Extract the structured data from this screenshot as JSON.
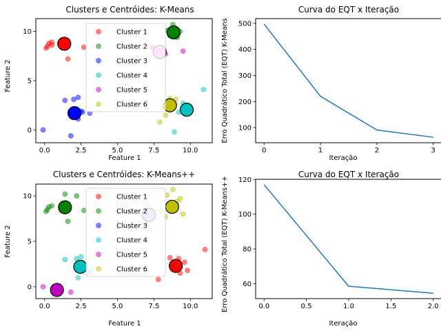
{
  "colors": {
    "red": "#ff0000",
    "green": "#008000",
    "blue": "#0000ff",
    "cyan": "#00bfbf",
    "magenta": "#bf00bf",
    "olive": "#bfbf00",
    "line": "#1f77b4"
  },
  "chart_data": [
    {
      "type": "scatter",
      "title": "Clusters e Centróides: K-Means",
      "xlabel": "Feature 1",
      "ylabel": "Feature 2",
      "xlim": [
        -0.6,
        11.5
      ],
      "ylim": [
        -1.3,
        11.3
      ],
      "xticks": [
        0,
        2.5,
        5,
        7.5,
        10
      ],
      "xticklabels": [
        "0.0",
        "2.5",
        "5.0",
        "7.5",
        "10.0"
      ],
      "yticks": [
        0,
        5,
        10
      ],
      "yticklabels": [
        "0",
        "5",
        "10"
      ],
      "legend": "upper center",
      "series": [
        {
          "name": "Cluster 1",
          "color": "red",
          "points": [
            [
              0.2,
              8.5
            ],
            [
              0.3,
              8.8
            ],
            [
              0.5,
              8.6
            ],
            [
              0.1,
              8.3
            ],
            [
              1.3,
              8.4
            ],
            [
              1.6,
              7.2
            ],
            [
              2.7,
              8.4
            ],
            [
              0.5,
              8.9
            ]
          ],
          "centroid": [
            1.35,
            8.75
          ],
          "centroid_color": "#ff0000"
        },
        {
          "name": "Cluster 2",
          "color": "green",
          "points": [
            [
              8.8,
              10.7
            ],
            [
              8.4,
              10.1
            ],
            [
              9.1,
              9.4
            ],
            [
              8.6,
              9.6
            ],
            [
              9.3,
              10.0
            ]
          ],
          "centroid": [
            8.85,
            9.9
          ],
          "centroid_color": "#008000"
        },
        {
          "name": "Cluster 3",
          "color": "blue",
          "points": [
            [
              -0.1,
              0.0
            ],
            [
              1.4,
              3.0
            ],
            [
              2.0,
              3.1
            ],
            [
              2.3,
              3.3
            ],
            [
              2.2,
              2.1
            ],
            [
              2.5,
              1.9
            ],
            [
              2.6,
              1.8
            ],
            [
              3.1,
              1.7
            ],
            [
              1.8,
              -0.6
            ],
            [
              2.3,
              1.1
            ]
          ],
          "centroid": [
            2.05,
            1.7
          ],
          "centroid_color": "#0000ff"
        },
        {
          "name": "Cluster 4",
          "color": "cyan",
          "points": [
            [
              9.5,
              2.7
            ],
            [
              9.2,
              1.8
            ],
            [
              9.8,
              2.2
            ],
            [
              10.9,
              4.1
            ],
            [
              8.9,
              -0.2
            ],
            [
              9.9,
              2.0
            ]
          ],
          "centroid": [
            9.75,
            2.05
          ],
          "centroid_color": "#00bfbf"
        },
        {
          "name": "Cluster 5",
          "color": "magenta",
          "points": [
            [
              8.0,
              8.3
            ],
            [
              9.5,
              8.0
            ],
            [
              7.4,
              8.4
            ],
            [
              8.3,
              7.7
            ]
          ],
          "centroid": [
            7.9,
            7.9
          ],
          "centroid_color": "#ee82ee"
        },
        {
          "name": "Cluster 6",
          "color": "olive",
          "points": [
            [
              8.6,
              3.2
            ],
            [
              9.0,
              3.1
            ],
            [
              8.1,
              2.2
            ],
            [
              8.3,
              1.5
            ],
            [
              7.9,
              0.8
            ],
            [
              8.9,
              2.6
            ]
          ],
          "centroid": [
            8.6,
            2.5
          ],
          "centroid_color": "#bfbf00"
        }
      ]
    },
    {
      "type": "line",
      "title": "Curva do EQT x Iteração",
      "xlabel": "Iteração",
      "ylabel": "Erro Quadrático Total (EQT) K-Means",
      "x": [
        0,
        1,
        2,
        3
      ],
      "y": [
        497,
        220,
        91,
        63
      ],
      "xlim": [
        -0.15,
        3.15
      ],
      "ylim": [
        42,
        518
      ],
      "xticks": [
        0,
        1,
        2,
        3
      ],
      "xticklabels": [
        "0",
        "1",
        "2",
        "3"
      ],
      "yticks": [
        100,
        200,
        300,
        400,
        500
      ],
      "yticklabels": [
        "100",
        "200",
        "300",
        "400",
        "500"
      ]
    },
    {
      "type": "scatter",
      "title": "Clusters e Centróides: K-Means++",
      "xlabel": "Feature 1",
      "ylabel": "Feature 2",
      "xlim": [
        -0.6,
        11.5
      ],
      "ylim": [
        -1.3,
        11.3
      ],
      "xticks": [
        0,
        2.5,
        5,
        7.5,
        10
      ],
      "xticklabels": [
        "0.0",
        "2.5",
        "5.0",
        "7.5",
        "10.0"
      ],
      "yticks": [
        0,
        5,
        10
      ],
      "yticklabels": [
        "0",
        "5",
        "10"
      ],
      "legend": "upper center",
      "series": [
        {
          "name": "Cluster 1",
          "color": "red",
          "points": [
            [
              9.6,
              2.7
            ],
            [
              9.2,
              3.1
            ],
            [
              8.6,
              3.2
            ],
            [
              9.8,
              1.8
            ],
            [
              8.9,
              2.6
            ],
            [
              7.8,
              0.8
            ],
            [
              11.0,
              4.1
            ],
            [
              9.3,
              1.5
            ]
          ],
          "centroid": [
            9.0,
            2.3
          ],
          "centroid_color": "#ff0000"
        },
        {
          "name": "Cluster 2",
          "color": "green",
          "points": [
            [
              0.2,
              8.5
            ],
            [
              0.3,
              8.8
            ],
            [
              0.5,
              8.9
            ],
            [
              0.1,
              8.3
            ],
            [
              1.4,
              10.2
            ],
            [
              1.6,
              7.2
            ],
            [
              2.7,
              8.4
            ],
            [
              2.2,
              10.0
            ]
          ],
          "centroid": [
            1.4,
            8.75
          ],
          "centroid_color": "#008000"
        },
        {
          "name": "Cluster 3",
          "color": "blue",
          "points": [
            [
              7.3,
              8.4
            ],
            [
              7.0,
              7.8
            ],
            [
              7.4,
              8.0
            ]
          ],
          "centroid": [
            7.15,
            7.9
          ],
          "centroid_color": "#aaaaff"
        },
        {
          "name": "Cluster 4",
          "color": "cyan",
          "points": [
            [
              1.4,
              3.0
            ],
            [
              2.2,
              3.1
            ],
            [
              2.5,
              3.3
            ],
            [
              2.3,
              2.0
            ],
            [
              2.5,
              1.9
            ],
            [
              2.6,
              1.8
            ],
            [
              3.1,
              1.7
            ],
            [
              2.3,
              1.0
            ]
          ],
          "centroid": [
            2.45,
            2.2
          ],
          "centroid_color": "#00bfbf"
        },
        {
          "name": "Cluster 5",
          "color": "magenta",
          "points": [
            [
              -0.1,
              0.0
            ],
            [
              1.8,
              -0.6
            ]
          ],
          "centroid": [
            0.85,
            -0.35
          ],
          "centroid_color": "#bf00bf"
        },
        {
          "name": "Cluster 6",
          "color": "olive",
          "points": [
            [
              8.8,
              10.7
            ],
            [
              8.4,
              10.1
            ],
            [
              9.1,
              9.4
            ],
            [
              9.3,
              9.7
            ],
            [
              8.0,
              8.3
            ],
            [
              9.5,
              8.0
            ],
            [
              8.3,
              7.7
            ]
          ],
          "centroid": [
            8.75,
            8.8
          ],
          "centroid_color": "#bfbf00"
        }
      ]
    },
    {
      "type": "line",
      "title": "Curva do EQT x Iteração",
      "xlabel": "Iteração",
      "ylabel": "Erro Quadrático Total (EQT) K-Means++",
      "x": [
        0,
        1,
        2
      ],
      "y": [
        117,
        58.5,
        54.5
      ],
      "xlim": [
        -0.1,
        2.1
      ],
      "ylim": [
        51.4,
        120.1
      ],
      "xticks": [
        0,
        0.5,
        1,
        1.5,
        2
      ],
      "xticklabels": [
        "0.0",
        "0.5",
        "1.0",
        "1.5",
        "2.0"
      ],
      "yticks": [
        60,
        80,
        100,
        120
      ],
      "yticklabels": [
        "60",
        "80",
        "100",
        "120"
      ]
    }
  ]
}
